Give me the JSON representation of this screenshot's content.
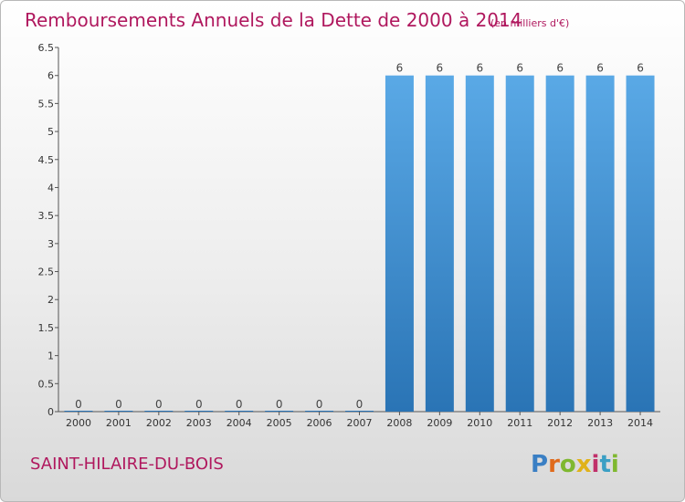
{
  "chart_data": {
    "type": "bar",
    "title": "Remboursements Annuels de la Dette de 2000 à 2014",
    "unit": "(en milliers d'€)",
    "categories": [
      "2000",
      "2001",
      "2002",
      "2003",
      "2004",
      "2005",
      "2006",
      "2007",
      "2008",
      "2009",
      "2010",
      "2011",
      "2012",
      "2013",
      "2014"
    ],
    "values": [
      0,
      0,
      0,
      0,
      0,
      0,
      0,
      0,
      6,
      6,
      6,
      6,
      6,
      6,
      6
    ],
    "ylim": [
      0,
      6.5
    ],
    "yticks": [
      "0",
      "0.5",
      "1",
      "1.5",
      "2",
      "2.5",
      "3",
      "3.5",
      "4",
      "4.5",
      "5",
      "5.5",
      "6",
      "6.5"
    ],
    "grid": false,
    "colors": {
      "bar": "#3d8fd1",
      "bar_light": "#5aa9e6",
      "bar_dark": "#2a74b5",
      "title": "#b0185e"
    }
  },
  "footer": {
    "commune": "SAINT-HILAIRE-DU-BOIS",
    "brand": "Proxiti",
    "brand_colors": [
      "#3a7fc4",
      "#e06a1b",
      "#7fb830",
      "#e0b21b",
      "#c0306a",
      "#3a9fc4",
      "#7fb830"
    ]
  }
}
